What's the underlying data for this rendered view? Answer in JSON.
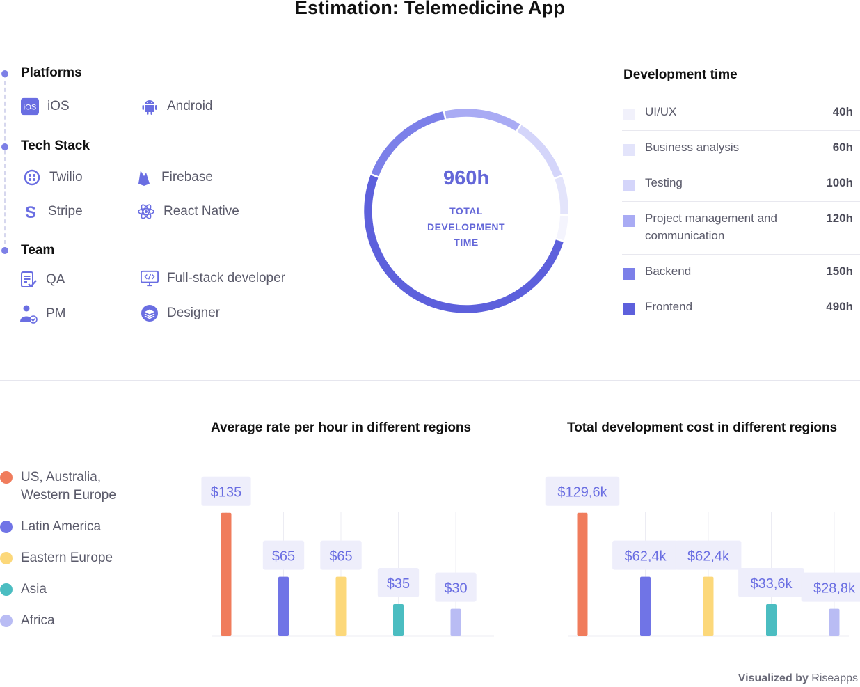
{
  "page": {
    "title": "Estimation: Telemedicine App"
  },
  "specs": {
    "platforms": {
      "heading": "Platforms",
      "items": [
        "iOS",
        "Android"
      ],
      "ios_badge": "iOS"
    },
    "tech_stack": {
      "heading": "Tech Stack",
      "items": [
        "Twilio",
        "Firebase",
        "Stripe",
        "React Native"
      ]
    },
    "team": {
      "heading": "Team",
      "items": [
        "QA",
        "Full-stack developer",
        "PM",
        "Designer"
      ]
    }
  },
  "icons": [
    "ios-icon",
    "android-icon",
    "twilio-icon",
    "firebase-icon",
    "stripe-icon",
    "react-icon",
    "qa-icon",
    "fullstack-icon",
    "pm-icon",
    "designer-icon"
  ],
  "colors": {
    "accent": "#6467d8",
    "us": "#f07c5c",
    "latam": "#7074e6",
    "eastern_europe": "#fcd87a",
    "asia": "#4bbdc1",
    "africa": "#b9bcf4"
  },
  "chart_data": [
    {
      "type": "pie",
      "title": "Development time",
      "center_value": "960h",
      "center_label": "TOTAL DEVELOPMENT TIME",
      "categories": [
        "UI/UX",
        "Business analysis",
        "Testing",
        "Project management and communication",
        "Backend",
        "Frontend"
      ],
      "values": [
        40,
        60,
        100,
        120,
        150,
        490
      ],
      "value_labels": [
        "40h",
        "60h",
        "100h",
        "120h",
        "150h",
        "490h"
      ],
      "colors": [
        "#f4f4fd",
        "#e3e4fb",
        "#d4d5fa",
        "#a9abf4",
        "#7c80e9",
        "#5d60dc"
      ]
    },
    {
      "type": "bar",
      "title": "Average rate per hour in different regions",
      "categories": [
        "US, Australia, Western Europe",
        "Latin America",
        "Eastern Europe",
        "Asia",
        "Africa"
      ],
      "values": [
        135,
        65,
        65,
        35,
        30
      ],
      "value_labels": [
        "$135",
        "$65",
        "$65",
        "$35",
        "$30"
      ],
      "ylim": [
        0,
        150
      ],
      "colors": [
        "#f07c5c",
        "#7074e6",
        "#fcd87a",
        "#4bbdc1",
        "#b9bcf4"
      ]
    },
    {
      "type": "bar",
      "title": "Total development cost in different regions",
      "categories": [
        "US, Australia, Western Europe",
        "Latin America",
        "Eastern Europe",
        "Asia",
        "Africa"
      ],
      "values": [
        129.6,
        62.4,
        62.4,
        33.6,
        28.8
      ],
      "value_labels": [
        "$129,6k",
        "$62,4k",
        "$62,4k",
        "$33,6k",
        "$28,8k"
      ],
      "ylim": [
        0,
        144
      ],
      "colors": [
        "#f07c5c",
        "#7074e6",
        "#fcd87a",
        "#4bbdc1",
        "#b9bcf4"
      ]
    }
  ],
  "legend": {
    "regions": [
      "US, Australia,\nWestern Europe",
      "Latin America",
      "Eastern Europe",
      "Asia",
      "Africa"
    ]
  },
  "footer": {
    "prefix": "Visualized by",
    "brand": "Riseapps"
  }
}
